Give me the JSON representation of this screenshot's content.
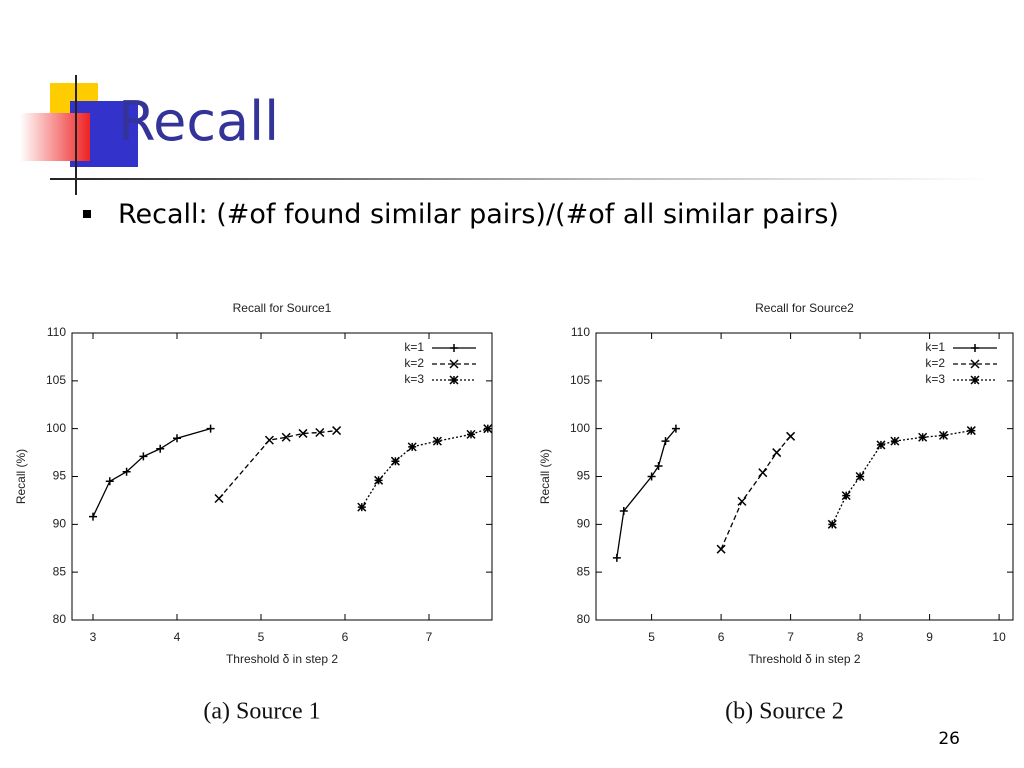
{
  "slide": {
    "title": "Recall",
    "bullet": "Recall: (#of found similar pairs)/(#of all similar pairs)",
    "page_number": 26
  },
  "chart_data": [
    {
      "type": "line",
      "title": "Recall for Source1",
      "caption": "(a) Source 1",
      "x_label": "Threshold δ in step 2",
      "y_label": "Recall (%)",
      "xlim": [
        2.75,
        7.75
      ],
      "ylim": [
        80,
        110
      ],
      "xticks": [
        3,
        4,
        5,
        6,
        7
      ],
      "yticks": [
        80,
        85,
        90,
        95,
        100,
        105,
        110
      ],
      "legend": "upper right",
      "series": [
        {
          "name": "k=1",
          "color": "#000000",
          "dash": "solid",
          "marker": "plus",
          "x": [
            3.0,
            3.2,
            3.4,
            3.6,
            3.8,
            4.0,
            4.4
          ],
          "values": [
            90.8,
            94.5,
            95.5,
            97.1,
            97.9,
            99.0,
            100
          ]
        },
        {
          "name": "k=2",
          "color": "#000000",
          "dash": "dashed",
          "marker": "cross",
          "x": [
            4.5,
            5.1,
            5.3,
            5.5,
            5.7,
            5.9
          ],
          "values": [
            92.7,
            98.8,
            99.1,
            99.5,
            99.6,
            99.8
          ]
        },
        {
          "name": "k=3",
          "color": "#000000",
          "dash": "dotted",
          "marker": "star",
          "x": [
            6.2,
            6.4,
            6.6,
            6.8,
            7.1,
            7.5,
            7.7
          ],
          "values": [
            91.8,
            94.6,
            96.6,
            98.1,
            98.7,
            99.4,
            100
          ]
        }
      ]
    },
    {
      "type": "line",
      "title": "Recall for Source2",
      "caption": "(b) Source 2",
      "x_label": "Threshold δ in step 2",
      "y_label": "Recall (%)",
      "xlim": [
        4.2,
        10.2
      ],
      "ylim": [
        80,
        110
      ],
      "xticks": [
        5,
        6,
        7,
        8,
        9,
        10
      ],
      "yticks": [
        80,
        85,
        90,
        95,
        100,
        105,
        110
      ],
      "legend": "upper right",
      "series": [
        {
          "name": "k=1",
          "color": "#000000",
          "dash": "solid",
          "marker": "plus",
          "x": [
            4.5,
            4.6,
            5.0,
            5.1,
            5.2,
            5.35
          ],
          "values": [
            86.5,
            91.4,
            95.0,
            96.1,
            98.7,
            100
          ]
        },
        {
          "name": "k=2",
          "color": "#000000",
          "dash": "dashed",
          "marker": "cross",
          "x": [
            6.0,
            6.3,
            6.6,
            6.8,
            7.0
          ],
          "values": [
            87.4,
            92.4,
            95.4,
            97.5,
            99.2
          ]
        },
        {
          "name": "k=3",
          "color": "#000000",
          "dash": "dotted",
          "marker": "star",
          "x": [
            7.6,
            7.8,
            8.0,
            8.3,
            8.5,
            8.9,
            9.2,
            9.6
          ],
          "values": [
            90.0,
            93.0,
            95.0,
            98.3,
            98.7,
            99.1,
            99.3,
            99.8
          ]
        }
      ]
    }
  ]
}
